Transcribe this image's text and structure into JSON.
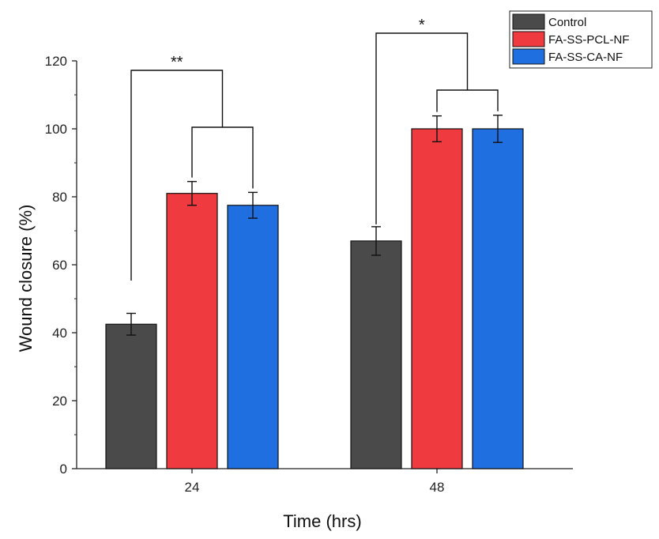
{
  "chart_data": {
    "type": "bar",
    "title": "",
    "xlabel": "Time (hrs)",
    "ylabel": "Wound closure (%)",
    "categories": [
      "24",
      "48"
    ],
    "ylim": [
      0,
      120
    ],
    "yticks": [
      "0",
      "20",
      "40",
      "60",
      "80",
      "100",
      "120"
    ],
    "series": [
      {
        "name": "Control",
        "color": "#4a4a4a",
        "values": [
          42.5,
          67
        ],
        "errors": [
          3.2,
          4.2
        ]
      },
      {
        "name": "FA-SS-PCL-NF",
        "color": "#ef3b3f",
        "values": [
          81,
          100
        ],
        "errors": [
          3.5,
          3.8
        ]
      },
      {
        "name": "FA-SS-CA-NF",
        "color": "#1f6fe0",
        "values": [
          77.5,
          100
        ],
        "errors": [
          3.8,
          4.0
        ]
      }
    ],
    "legend": {
      "position": "top-right"
    },
    "significance": [
      {
        "category_index": 0,
        "label": "**"
      },
      {
        "category_index": 1,
        "label": "*"
      }
    ]
  }
}
